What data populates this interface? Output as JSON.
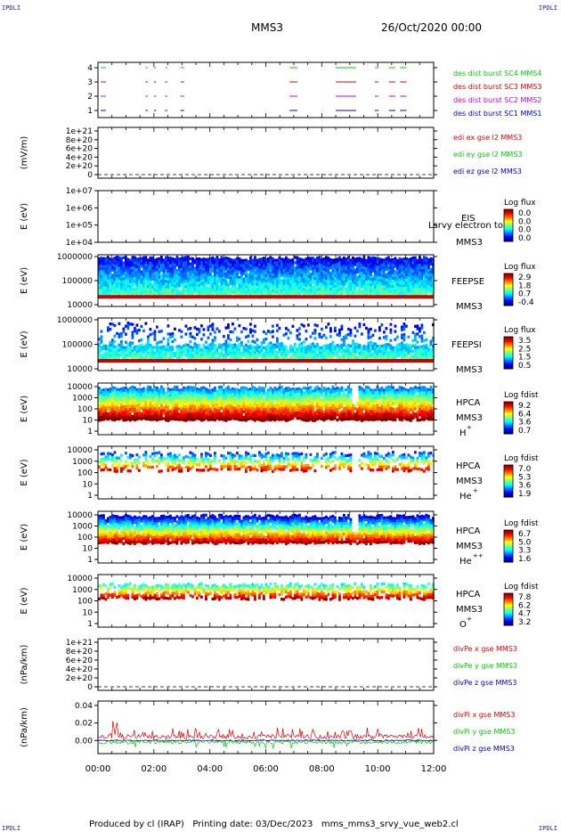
{
  "header": {
    "corner_tag": "IPDLI",
    "spacecraft": "MMS3",
    "date": "26/Oct/2020 00:00"
  },
  "footer": {
    "produced_by": "Produced by cl (IRAP)",
    "printing_date": "Printing date: 03/Dec/2023",
    "script_name": "mms_mms3_srvy_vue_web2.cl"
  },
  "colors": {
    "mms1": "#0000cc",
    "mms2": "#cc00cc",
    "mms3": "#dd0000",
    "mms4": "#00cc00",
    "ex": "#dd0000",
    "ey": "#00cc00",
    "ez": "#0000cc"
  },
  "chart_data": [
    {
      "type": "line",
      "id": "burst",
      "y_ticks": [
        "4",
        "3",
        "2",
        "1"
      ],
      "ylim": [
        0.5,
        4.5
      ],
      "xlim": [
        0,
        12
      ],
      "series": [
        {
          "name": "des dist burst SC1 MMS1",
          "y": 1,
          "color_key": "mms1"
        },
        {
          "name": "des dist burst SC2 MMS2",
          "y": 2,
          "color_key": "mms2"
        },
        {
          "name": "des dist burst SC3 MMS3",
          "y": 3,
          "color_key": "mms3"
        },
        {
          "name": "des dist burst SC4 MMS4",
          "y": 4,
          "color_key": "mms4"
        }
      ],
      "intervals_hours": [
        [
          0.1,
          0.25
        ],
        [
          1.7,
          1.75
        ],
        [
          2.0,
          2.05
        ],
        [
          2.4,
          2.45
        ],
        [
          2.95,
          3.05
        ],
        [
          6.85,
          7.1
        ],
        [
          8.5,
          9.2
        ],
        [
          9.9,
          10.0
        ],
        [
          10.4,
          10.6
        ],
        [
          10.8,
          11.0
        ]
      ]
    },
    {
      "type": "line",
      "id": "edi",
      "ylabel": "(mV/m)",
      "y_ticks": [
        "1e+21",
        "8e+20",
        "6e+20",
        "4e+20",
        "2e+20",
        "0"
      ],
      "ylim": [
        0,
        1e+21
      ],
      "series": [
        {
          "name": "edi ex gse l2 MMS3",
          "color_key": "ex"
        },
        {
          "name": "edi ey gse l2 MMS3",
          "color_key": "ey"
        },
        {
          "name": "edi ez gse l2 MMS3",
          "color_key": "ez"
        }
      ]
    },
    {
      "type": "heatmap",
      "id": "eis",
      "ylabel": "E (eV)",
      "y_ticks": [
        "1e+07",
        "1e+06",
        "1e+05",
        "1e+04"
      ],
      "log_scale": true,
      "instrument": "EIS",
      "overlay_text": "Lsrvy electron to",
      "spacecraft": "MMS3",
      "colorbar_title": "Log flux",
      "colorbar_ticks": [
        "0.0",
        "0.0",
        "0.0",
        "0.0"
      ]
    },
    {
      "type": "heatmap",
      "id": "feepse",
      "ylabel": "E (eV)",
      "y_ticks": [
        "1000000",
        "100000",
        "10000"
      ],
      "log_scale": true,
      "instrument": "FEEPSE",
      "spacecraft": "MMS3",
      "colorbar_title": "Log flux",
      "colorbar_ticks": [
        "2.9",
        "1.8",
        "0.7",
        "-0.4"
      ]
    },
    {
      "type": "heatmap",
      "id": "feepsi",
      "ylabel": "E (eV)",
      "y_ticks": [
        "1000000",
        "100000",
        "10000"
      ],
      "log_scale": true,
      "instrument": "FEEPSI",
      "spacecraft": "MMS3",
      "colorbar_title": "Log flux",
      "colorbar_ticks": [
        "3.5",
        "2.5",
        "1.5",
        "0.5"
      ]
    },
    {
      "type": "heatmap",
      "id": "hpca_h",
      "ylabel": "E (eV)",
      "y_ticks": [
        "10000",
        "1000",
        "100",
        "10",
        "1"
      ],
      "log_scale": true,
      "instrument": "HPCA",
      "spacecraft": "MMS3",
      "species": "H",
      "species_charge": "+",
      "colorbar_title": "Log fdist",
      "colorbar_ticks": [
        "9.2",
        "6.4",
        "3.6",
        "0.7"
      ]
    },
    {
      "type": "heatmap",
      "id": "hpca_he1",
      "ylabel": "E (eV)",
      "y_ticks": [
        "10000",
        "1000",
        "100",
        "10",
        "1"
      ],
      "log_scale": true,
      "instrument": "HPCA",
      "spacecraft": "MMS3",
      "species": "He",
      "species_charge": "+",
      "colorbar_title": "Log fdist",
      "colorbar_ticks": [
        "7.0",
        "5.3",
        "3.6",
        "1.9"
      ]
    },
    {
      "type": "heatmap",
      "id": "hpca_he2",
      "ylabel": "E (eV)",
      "y_ticks": [
        "10000",
        "1000",
        "100",
        "10",
        "1"
      ],
      "log_scale": true,
      "instrument": "HPCA",
      "spacecraft": "MMS3",
      "species": "He",
      "species_charge": "++",
      "colorbar_title": "Log fdist",
      "colorbar_ticks": [
        "6.7",
        "5.0",
        "3.3",
        "1.6"
      ]
    },
    {
      "type": "heatmap",
      "id": "hpca_o",
      "ylabel": "E (eV)",
      "y_ticks": [
        "10000",
        "1000",
        "100",
        "10",
        "1"
      ],
      "log_scale": true,
      "instrument": "HPCA",
      "spacecraft": "MMS3",
      "species": "O",
      "species_charge": "+",
      "colorbar_title": "Log fdist",
      "colorbar_ticks": [
        "7.8",
        "6.2",
        "4.7",
        "3.2"
      ]
    },
    {
      "type": "line",
      "id": "divpe",
      "ylabel": "(nPa/km)",
      "y_ticks": [
        "1e+21",
        "8e+20",
        "6e+20",
        "4e+20",
        "2e+20",
        "0"
      ],
      "ylim": [
        0,
        1e+21
      ],
      "series": [
        {
          "name": "divPe x gse MMS3",
          "color_key": "ex"
        },
        {
          "name": "divPe y gse MMS3",
          "color_key": "ey"
        },
        {
          "name": "divPe z gse MMS3",
          "color_key": "ez"
        }
      ]
    },
    {
      "type": "line",
      "id": "divpi",
      "ylabel": "(nPa/km)",
      "y_ticks": [
        "0.04",
        "0.02",
        "0.00"
      ],
      "ylim": [
        -0.015,
        0.045
      ],
      "series": [
        {
          "name": "divPi x gse MMS3",
          "color_key": "ex"
        },
        {
          "name": "divPi y gse MMS3",
          "color_key": "ey"
        },
        {
          "name": "divPi z gse MMS3",
          "color_key": "ez"
        }
      ]
    }
  ],
  "x_axis": {
    "ticks": [
      "00:00",
      "02:00",
      "04:00",
      "06:00",
      "08:00",
      "10:00",
      "12:00"
    ],
    "xlim": [
      0,
      12
    ]
  }
}
